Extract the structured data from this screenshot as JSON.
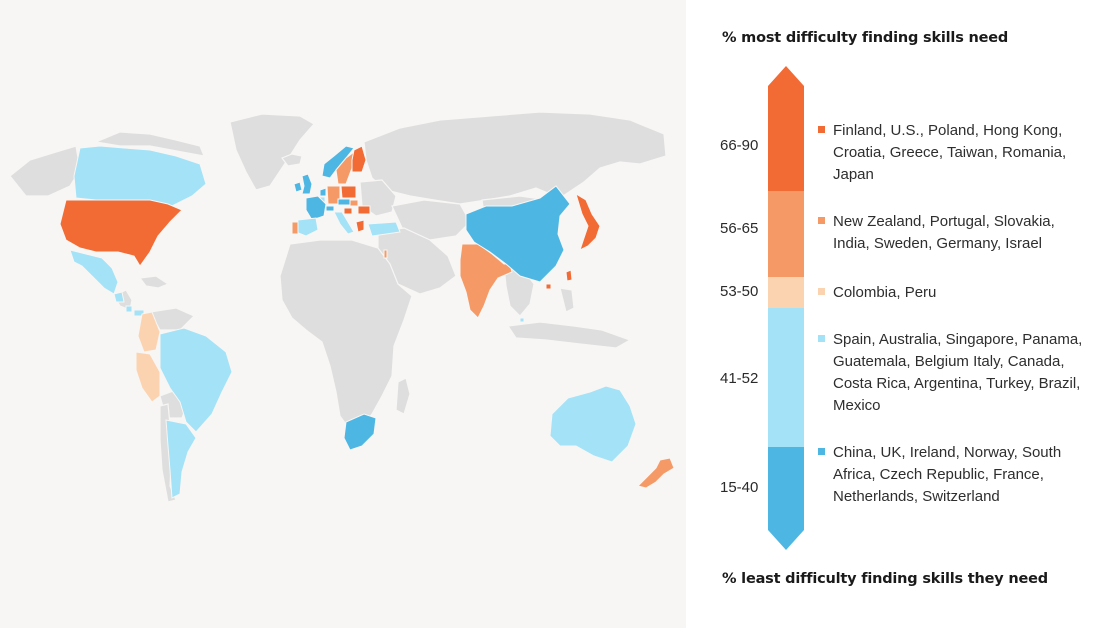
{
  "colors": {
    "background": "#f7f6f4",
    "no_data": "#dedede",
    "bin_66_90": "#f26a34",
    "bin_56_65": "#f59a66",
    "bin_53_50": "#fcd3b0",
    "bin_41_52": "#a3e2f7",
    "bin_15_40": "#4eb6e3"
  },
  "legend": {
    "top_title": "% most difficulty finding skills need",
    "bottom_title": "% least difficulty finding skills they need",
    "bins": [
      {
        "range": "66-90",
        "color": "#f26a34",
        "countries_text": "Finland, U.S., Poland, Hong Kong, Croatia, Greece, Taiwan, Romania, Japan"
      },
      {
        "range": "56-65",
        "color": "#f59a66",
        "countries_text": "New Zealand, Portugal, Slovakia, India, Sweden, Germany, Israel"
      },
      {
        "range": "53-50",
        "color": "#fcd3b0",
        "countries_text": "Colombia, Peru"
      },
      {
        "range": "41-52",
        "color": "#a3e2f7",
        "countries_text": "Spain, Australia, Singapore, Panama, Guatemala, Belgium Italy, Canada, Costa Rica, Argentina, Turkey, Brazil, Mexico"
      },
      {
        "range": "15-40",
        "color": "#4eb6e3",
        "countries_text": "China, UK, Ireland, Norway, South Africa, Czech Republic, France, Netherlands, Switzerland"
      }
    ]
  },
  "map": {
    "regions": [
      {
        "name": "Greenland",
        "bin": null
      },
      {
        "name": "Alaska",
        "bin": null
      },
      {
        "name": "Canada",
        "bin": "41-52"
      },
      {
        "name": "United States",
        "bin": "66-90"
      },
      {
        "name": "Mexico",
        "bin": "41-52"
      },
      {
        "name": "Guatemala",
        "bin": "41-52"
      },
      {
        "name": "Costa Rica",
        "bin": "41-52"
      },
      {
        "name": "Panama",
        "bin": "41-52"
      },
      {
        "name": "Colombia",
        "bin": "53-50"
      },
      {
        "name": "Peru",
        "bin": "53-50"
      },
      {
        "name": "Brazil",
        "bin": "41-52"
      },
      {
        "name": "Argentina",
        "bin": "41-52"
      },
      {
        "name": "Iceland",
        "bin": null
      },
      {
        "name": "Ireland",
        "bin": "15-40"
      },
      {
        "name": "UK",
        "bin": "15-40"
      },
      {
        "name": "Norway",
        "bin": "15-40"
      },
      {
        "name": "Sweden",
        "bin": "56-65"
      },
      {
        "name": "Finland",
        "bin": "66-90"
      },
      {
        "name": "France",
        "bin": "15-40"
      },
      {
        "name": "Spain",
        "bin": "41-52"
      },
      {
        "name": "Portugal",
        "bin": "56-65"
      },
      {
        "name": "Belgium",
        "bin": "41-52"
      },
      {
        "name": "Netherlands",
        "bin": "15-40"
      },
      {
        "name": "Germany",
        "bin": "56-65"
      },
      {
        "name": "Switzerland",
        "bin": "15-40"
      },
      {
        "name": "Italy",
        "bin": "41-52"
      },
      {
        "name": "Poland",
        "bin": "66-90"
      },
      {
        "name": "Czech Republic",
        "bin": "15-40"
      },
      {
        "name": "Slovakia",
        "bin": "56-65"
      },
      {
        "name": "Croatia",
        "bin": "66-90"
      },
      {
        "name": "Romania",
        "bin": "66-90"
      },
      {
        "name": "Greece",
        "bin": "66-90"
      },
      {
        "name": "Turkey",
        "bin": "41-52"
      },
      {
        "name": "Israel",
        "bin": "56-65"
      },
      {
        "name": "India",
        "bin": "56-65"
      },
      {
        "name": "China",
        "bin": "15-40"
      },
      {
        "name": "Hong Kong",
        "bin": "66-90"
      },
      {
        "name": "Taiwan",
        "bin": "66-90"
      },
      {
        "name": "Japan",
        "bin": "66-90"
      },
      {
        "name": "Singapore",
        "bin": "41-52"
      },
      {
        "name": "South Africa",
        "bin": "15-40"
      },
      {
        "name": "Australia",
        "bin": "41-52"
      },
      {
        "name": "New Zealand",
        "bin": "56-65"
      }
    ]
  }
}
